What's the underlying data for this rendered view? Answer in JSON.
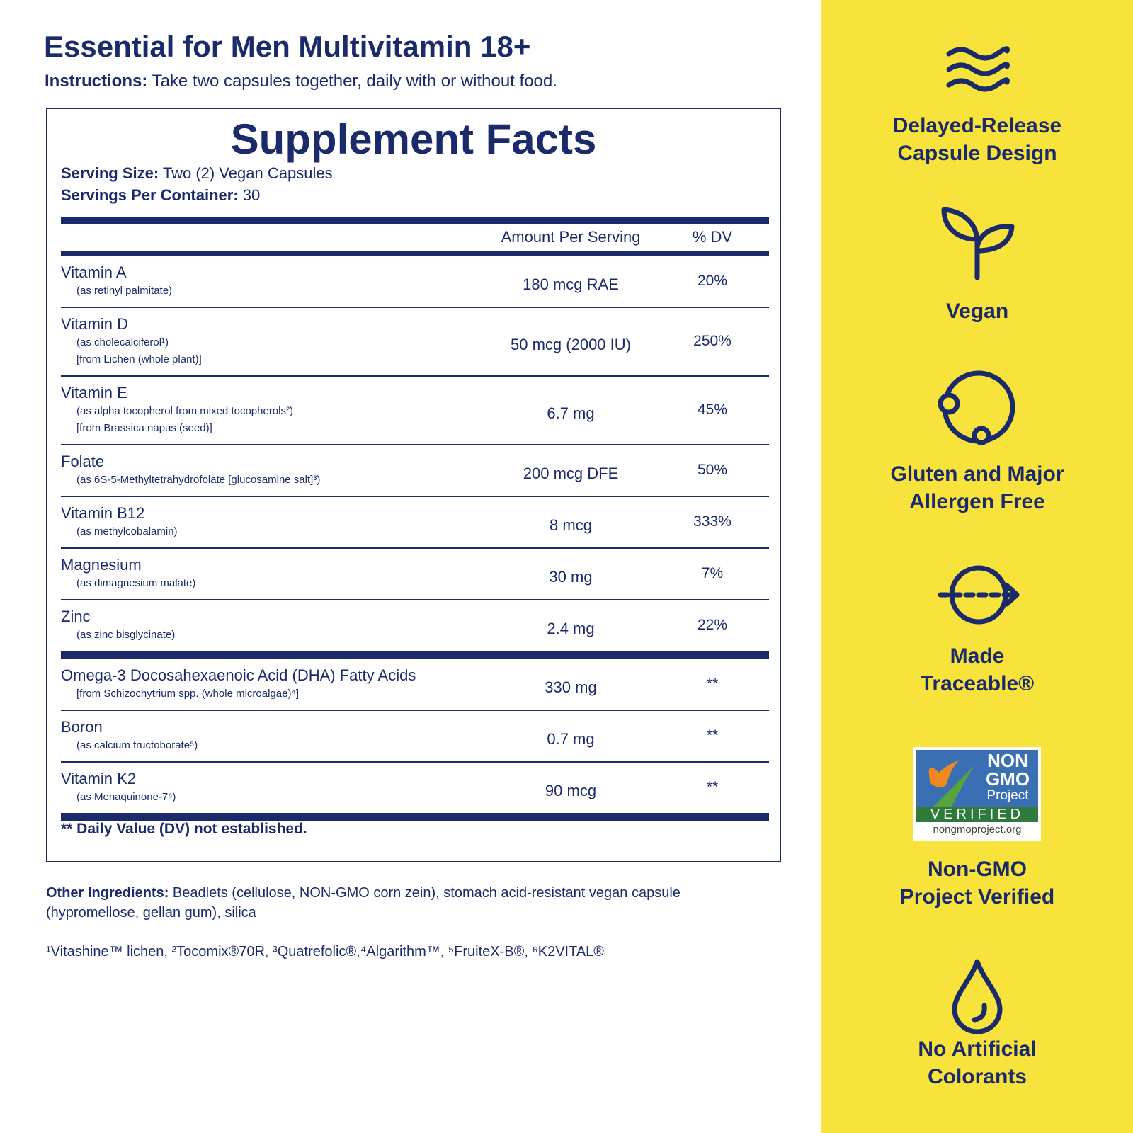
{
  "header": {
    "title": "Essential for Men Multivitamin 18+",
    "instructions_label": "Instructions:",
    "instructions": "Take two capsules together, daily with or without food."
  },
  "facts": {
    "title": "Supplement Facts",
    "serving_size_label": "Serving Size:",
    "serving_size": "Two (2) Vegan Capsules",
    "servings_label": "Servings Per Container:",
    "servings": "30",
    "columns": [
      "Amount Per Serving",
      "% DV"
    ],
    "groups": [
      [
        {
          "name": "Vitamin A",
          "notes": [
            "(as retinyl palmitate)"
          ],
          "amount": "180 mcg RAE",
          "dv": "20%"
        },
        {
          "name": "Vitamin D",
          "notes": [
            "(as cholecalciferol¹)",
            "[from Lichen (whole plant)]"
          ],
          "amount": "50 mcg (2000 IU)",
          "dv": "250%"
        },
        {
          "name": "Vitamin E",
          "notes": [
            "(as alpha tocopherol from mixed tocopherols²)",
            "[from Brassica napus (seed)]"
          ],
          "amount": "6.7 mg",
          "dv": "45%"
        },
        {
          "name": "Folate",
          "notes": [
            "(as 6S-5-Methyltetrahydrofolate [glucosamine salt]³)"
          ],
          "amount": "200 mcg DFE",
          "dv": "50%"
        },
        {
          "name": "Vitamin B12",
          "notes": [
            "(as methylcobalamin)"
          ],
          "amount": "8 mcg",
          "dv": "333%"
        },
        {
          "name": "Magnesium",
          "notes": [
            "(as dimagnesium malate)"
          ],
          "amount": "30 mg",
          "dv": "7%"
        },
        {
          "name": "Zinc",
          "notes": [
            "(as zinc bisglycinate)"
          ],
          "amount": "2.4 mg",
          "dv": "22%"
        }
      ],
      [
        {
          "name": "Omega-3 Docosahexaenoic Acid (DHA) Fatty Acids",
          "notes": [
            "[from Schizochytrium spp. (whole microalgae)⁴]"
          ],
          "amount": "330 mg",
          "dv": "**"
        },
        {
          "name": "Boron",
          "notes": [
            "(as calcium fructoborate⁵)"
          ],
          "amount": "0.7 mg",
          "dv": "**"
        },
        {
          "name": "Vitamin K2",
          "notes": [
            "(as Menaquinone-7⁶)"
          ],
          "amount": "90 mcg",
          "dv": "**"
        }
      ]
    ],
    "footnote": "** Daily Value (DV) not established."
  },
  "other_ingredients_label": "Other Ingredients:",
  "other_ingredients": "Beadlets (cellulose, NON-GMO corn zein), stomach acid-resistant vegan capsule (hypromellose, gellan gum), silica",
  "trademarks": "¹Vitashine™ lichen, ²Tocomix®70R, ³Quatrefolic®,⁴Algarithm™, ⁵FruiteX-B®, ⁶K2VITAL®",
  "features": [
    {
      "label": [
        "Delayed-Release",
        "Capsule Design"
      ]
    },
    {
      "label": [
        "Vegan"
      ]
    },
    {
      "label": [
        "Gluten and Major",
        "Allergen Free"
      ]
    },
    {
      "label": [
        "Made",
        "Traceable®"
      ]
    },
    {
      "label": [
        "Non-GMO",
        "Project Verified"
      ]
    },
    {
      "label": [
        "No Artificial",
        "Colorants"
      ]
    }
  ],
  "badge": {
    "line1": "NON",
    "line2": "GMO",
    "line3": "Project",
    "verified": "VERIFIED",
    "url": "nongmoproject.org"
  }
}
